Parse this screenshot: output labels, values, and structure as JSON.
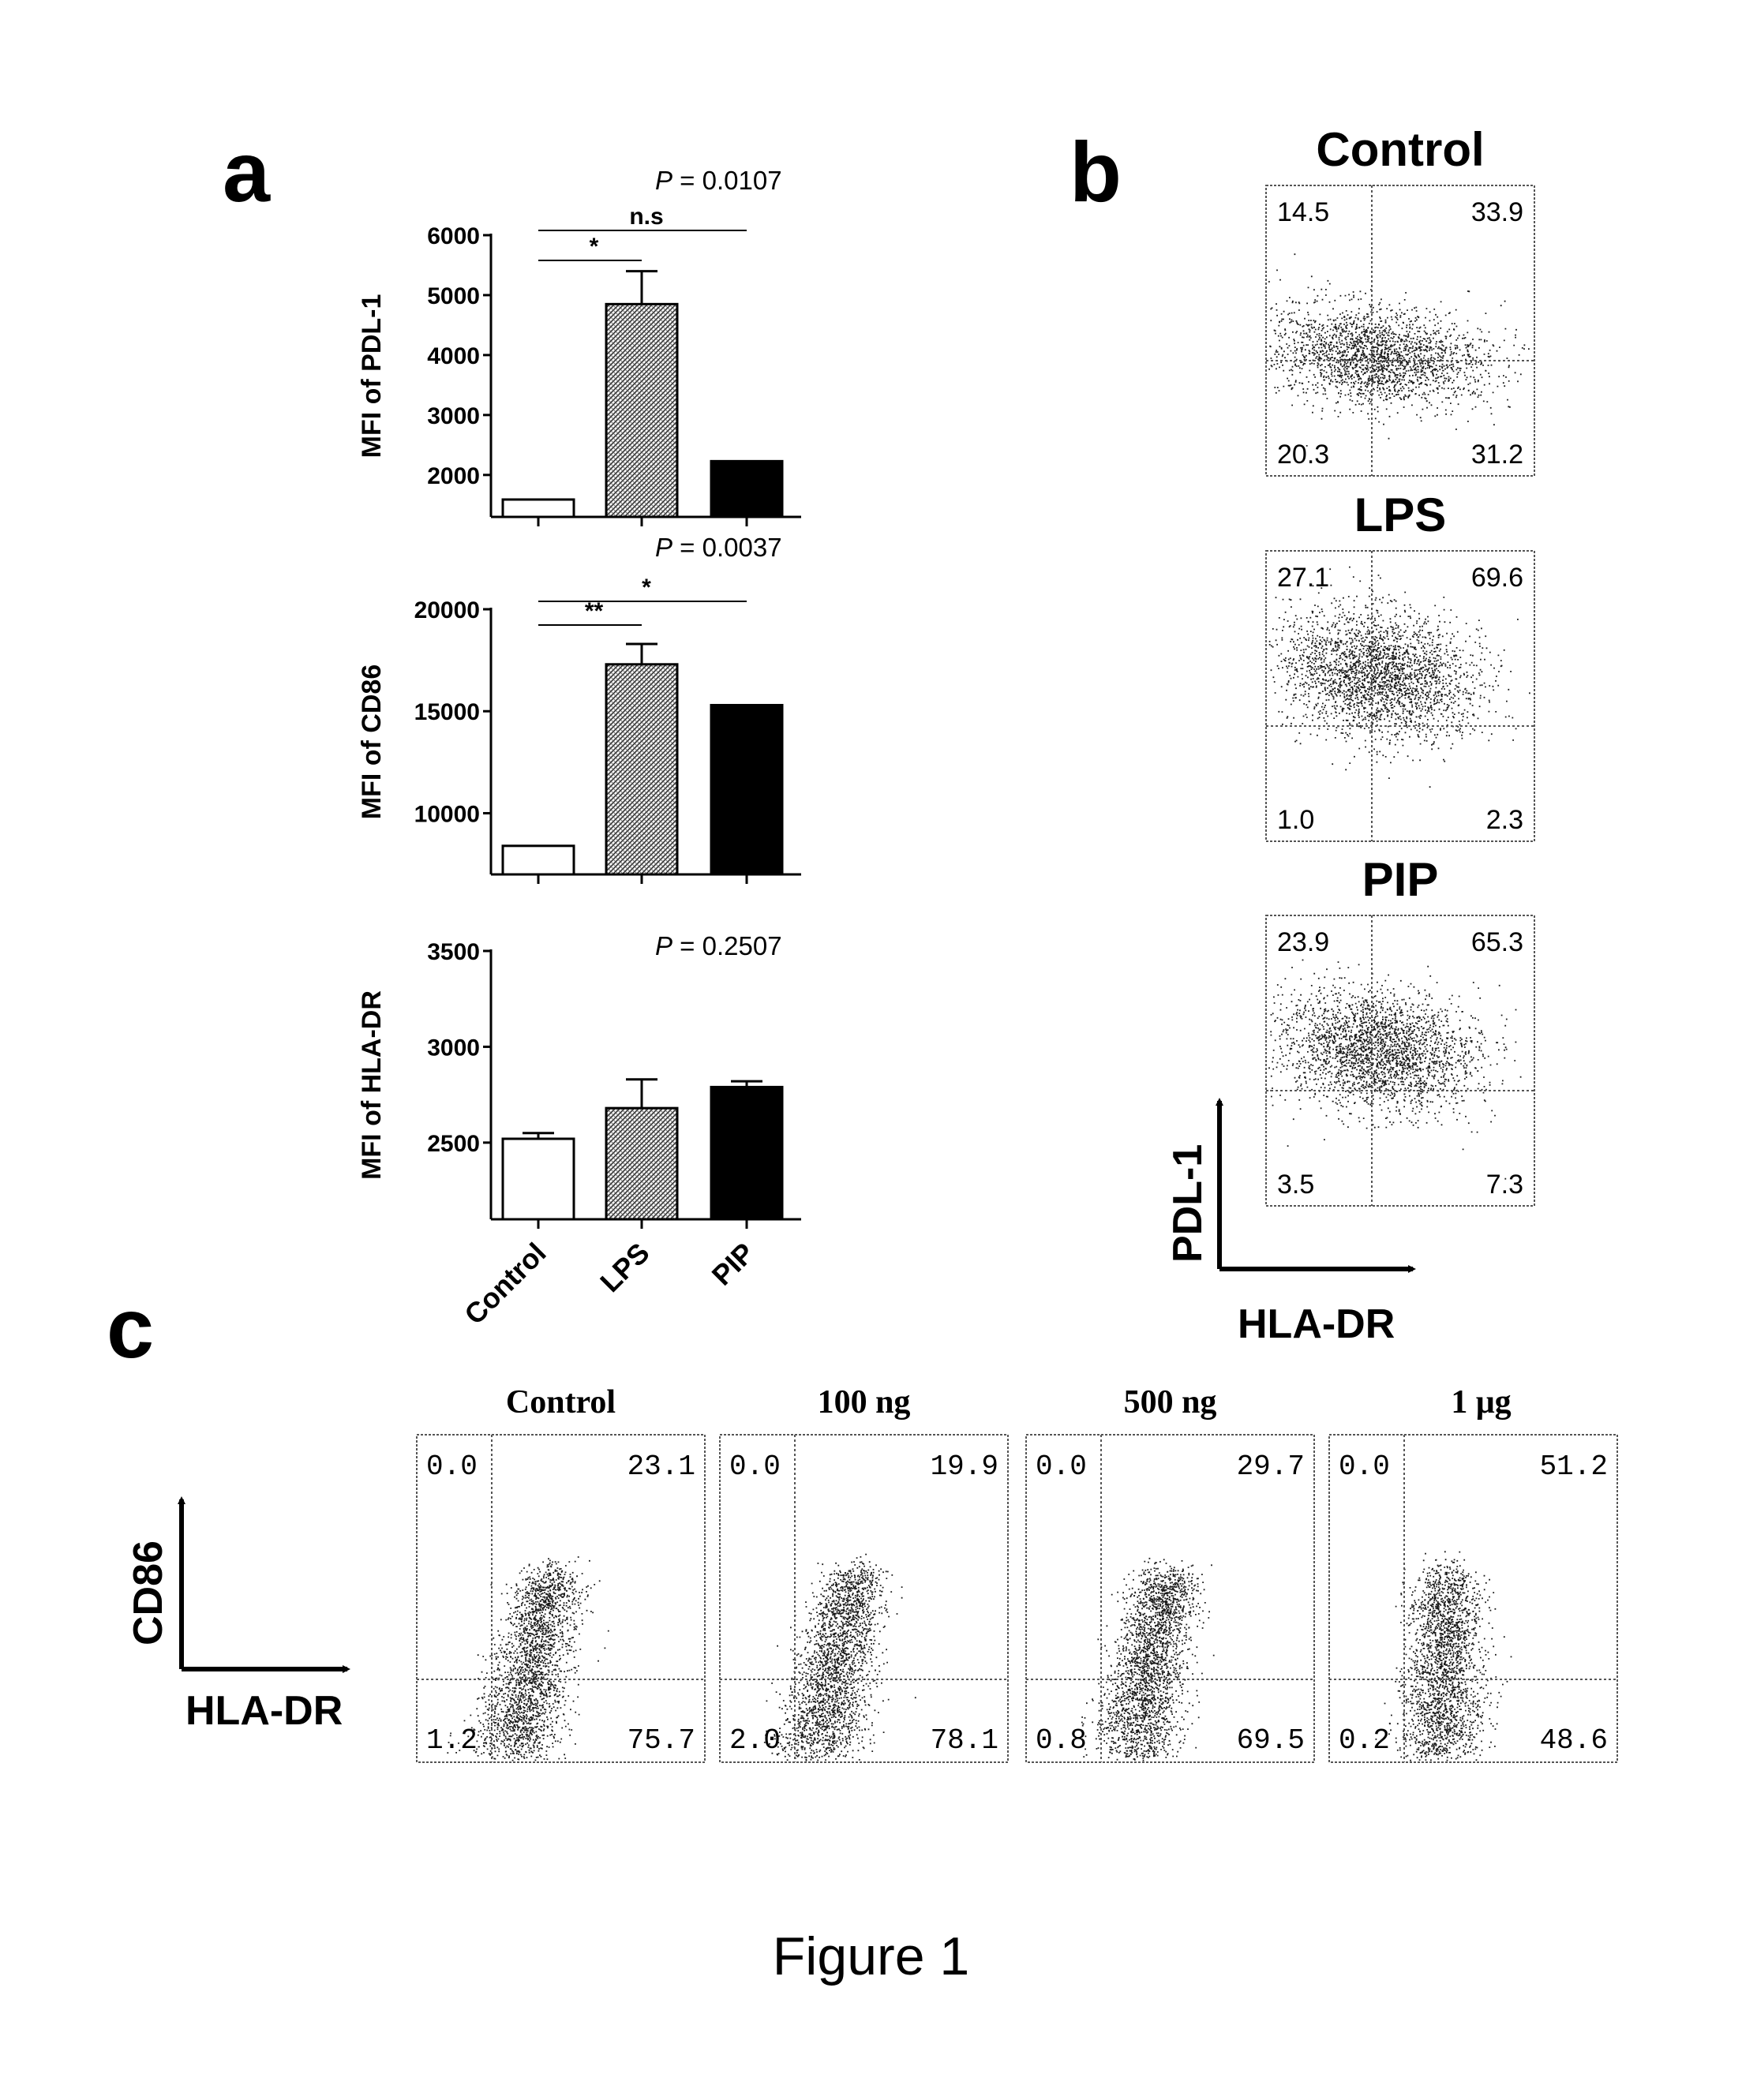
{
  "figure_caption": "Figure 1",
  "panels": {
    "a": "a",
    "b": "b",
    "c": "c"
  },
  "chart_data": [
    {
      "type": "bar",
      "panel": "a",
      "categories": [
        "Control",
        "LPS",
        "PIP"
      ],
      "series": [
        {
          "values": [
            1590,
            4850,
            2230
          ],
          "errors": [
            0,
            550,
            0
          ]
        }
      ],
      "ylabel": "MFI of PDL-1",
      "ylim": [
        1300,
        6000
      ],
      "yticks": [
        2000,
        3000,
        4000,
        5000,
        6000
      ],
      "p_value_label": "P",
      "p_value_text": " = 0.0107",
      "comparisons": [
        {
          "from": "Control",
          "to": "LPS",
          "label": "*"
        },
        {
          "from": "Control",
          "to": "PIP",
          "label": "n.s"
        }
      ],
      "colors": [
        "#ffffff",
        "#a9a9a9",
        "#000000"
      ]
    },
    {
      "type": "bar",
      "panel": "a",
      "categories": [
        "Control",
        "LPS",
        "PIP"
      ],
      "series": [
        {
          "values": [
            8400,
            17300,
            15300
          ],
          "errors": [
            0,
            1000,
            0
          ]
        }
      ],
      "ylabel": "MFI of CD86",
      "ylim": [
        7000,
        20000
      ],
      "yticks": [
        10000,
        15000,
        20000
      ],
      "p_value_label": "P",
      "p_value_text": " = 0.0037",
      "comparisons": [
        {
          "from": "Control",
          "to": "LPS",
          "label": "**"
        },
        {
          "from": "Control",
          "to": "PIP",
          "label": "*"
        }
      ],
      "colors": [
        "#ffffff",
        "#a9a9a9",
        "#000000"
      ]
    },
    {
      "type": "bar",
      "panel": "a",
      "categories": [
        "Control",
        "LPS",
        "PIP"
      ],
      "series": [
        {
          "values": [
            2520,
            2680,
            2790
          ],
          "errors": [
            30,
            150,
            30
          ]
        }
      ],
      "ylabel": "MFI of HLA-DR",
      "ylim": [
        2100,
        3500
      ],
      "yticks": [
        2500,
        3000,
        3500
      ],
      "p_value_label": "P",
      "p_value_text": " = 0.2507",
      "comparisons": [],
      "colors": [
        "#ffffff",
        "#a9a9a9",
        "#000000"
      ]
    },
    {
      "type": "scatter",
      "panel": "b",
      "xlabel": "HLA-DR",
      "ylabel": "PDL-1",
      "plots": [
        {
          "title": "Control",
          "quadrants": {
            "ul": "14.5",
            "ur": "33.9",
            "ll": "20.3",
            "lr": "31.2"
          }
        },
        {
          "title": "LPS",
          "quadrants": {
            "ul": "27.1",
            "ur": "69.6",
            "ll": "1.0",
            "lr": "2.3"
          }
        },
        {
          "title": "PIP",
          "quadrants": {
            "ul": "23.9",
            "ur": "65.3",
            "ll": "3.5",
            "lr": "7.3"
          }
        }
      ]
    },
    {
      "type": "scatter",
      "panel": "c",
      "xlabel": "HLA-DR",
      "ylabel": "CD86",
      "plots": [
        {
          "title": "Control",
          "quadrants": {
            "ul": "0.0",
            "ur": "23.1",
            "ll": "1.2",
            "lr": "75.7"
          }
        },
        {
          "title": "100 ng",
          "quadrants": {
            "ul": "0.0",
            "ur": "19.9",
            "ll": "2.0",
            "lr": "78.1"
          }
        },
        {
          "title": "500 ng",
          "quadrants": {
            "ul": "0.0",
            "ur": "29.7",
            "ll": "0.8",
            "lr": "69.5"
          }
        },
        {
          "title": "1 μg",
          "quadrants": {
            "ul": "0.0",
            "ur": "51.2",
            "ll": "0.2",
            "lr": "48.6"
          }
        }
      ]
    }
  ]
}
